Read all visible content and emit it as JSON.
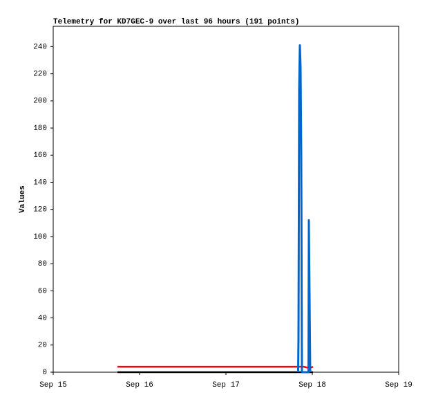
{
  "chart_data": {
    "type": "line",
    "title": "Telemetry for KD7GEC-9 over last 96 hours (191 points)",
    "y_label": "Values",
    "xlim": [
      0,
      4
    ],
    "xticks": [
      {
        "value": 0,
        "label": "Sep 15"
      },
      {
        "value": 1,
        "label": "Sep 16"
      },
      {
        "value": 2,
        "label": "Sep 17"
      },
      {
        "value": 3,
        "label": "Sep 18"
      },
      {
        "value": 4,
        "label": "Sep 19"
      }
    ],
    "ylim": [
      0,
      255
    ],
    "yticks": [
      0,
      20,
      40,
      60,
      80,
      100,
      120,
      140,
      160,
      180,
      200,
      220,
      240
    ],
    "grid": false,
    "series": [
      {
        "color": "#000000",
        "x": [
          0.744,
          3.008
        ],
        "values": [
          0,
          0
        ]
      },
      {
        "color": "#ff0000",
        "x": [
          0.744,
          2.83,
          2.9,
          2.97,
          3.008
        ],
        "values": [
          4,
          4,
          4,
          3,
          4
        ]
      },
      {
        "color": "#0066cc",
        "x": [
          2.836,
          2.84,
          2.848,
          2.856,
          2.864,
          2.872,
          2.88,
          2.956,
          2.96,
          2.968,
          2.976
        ],
        "values": [
          0,
          25,
          208,
          241,
          225,
          160,
          0,
          0,
          112,
          56,
          0
        ]
      }
    ]
  }
}
